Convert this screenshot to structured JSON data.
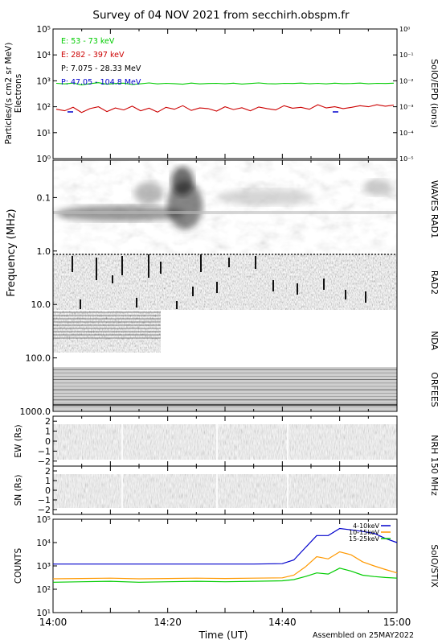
{
  "title": "Survey of 04 NOV 2021 from secchirh.obspm.fr",
  "footer": {
    "xlabel": "Time (UT)",
    "assembled": "Assembled on 25MAY2022"
  },
  "time_ticks": [
    "14:00",
    "14:20",
    "14:40",
    "15:00"
  ],
  "colors": {
    "green": "#00cc00",
    "red": "#cc0000",
    "black": "#000000",
    "blue": "#0000cc",
    "orange": "#ff9900",
    "stix_green": "#00cc00"
  },
  "chart_data": [
    {
      "id": "epd",
      "type": "line",
      "instrument": "SolO/EPD (ions)",
      "ylabel": "Particles/(s cm2 sr MeV)",
      "ylabel2": "Electrons",
      "yscale": "log",
      "ylim": [
        1,
        100000
      ],
      "ylim_right": [
        1e-05,
        1
      ],
      "y_ticks": [
        {
          "v": 1,
          "t": "10⁰"
        },
        {
          "v": 10,
          "t": "10¹"
        },
        {
          "v": 100,
          "t": "10²"
        },
        {
          "v": 1000,
          "t": "10³"
        },
        {
          "v": 10000,
          "t": "10⁴"
        },
        {
          "v": 100000,
          "t": "10⁵"
        }
      ],
      "y_ticks_right": [
        {
          "v": 1e-05,
          "t": "10⁻⁵"
        },
        {
          "v": 0.0001,
          "t": "10⁻⁴"
        },
        {
          "v": 0.001,
          "t": "10⁻³"
        },
        {
          "v": 0.01,
          "t": "10⁻²"
        },
        {
          "v": 0.1,
          "t": "10⁻¹"
        },
        {
          "v": 1,
          "t": "10⁰"
        }
      ],
      "series": [
        {
          "name": "E: 53 - 73 keV",
          "color": "#00cc00",
          "values": [
            800,
            760,
            820,
            700,
            780,
            850,
            740,
            790,
            810,
            720,
            770,
            830,
            760,
            800,
            780,
            740,
            820,
            760,
            790,
            800,
            770,
            810,
            750,
            790,
            830,
            780,
            760,
            800,
            790,
            820,
            770,
            800,
            760,
            810,
            780,
            790,
            820,
            770,
            800,
            790,
            810
          ]
        },
        {
          "name": "E: 282 - 397 keV",
          "color": "#cc0000",
          "values": [
            80,
            70,
            95,
            60,
            85,
            100,
            65,
            90,
            75,
            105,
            70,
            88,
            62,
            95,
            80,
            110,
            72,
            90,
            85,
            68,
            100,
            78,
            92,
            70,
            98,
            85,
            75,
            110,
            88,
            95,
            80,
            120,
            90,
            100,
            85,
            95,
            110,
            100,
            120,
            105,
            115
          ]
        }
      ],
      "legend_extra": [
        {
          "name": "P: 7.075 - 28.33 MeV",
          "color": "#000000"
        },
        {
          "name": "P: 47.05 - 104.8 MeV",
          "color": "#0000cc"
        }
      ]
    },
    {
      "id": "waves",
      "type": "heatmap",
      "ylabel": "Frequency (MHz)",
      "yscale": "log",
      "ylim": [
        0.02,
        1000
      ],
      "y_ticks": [
        {
          "v": 0.1,
          "t": "0.1"
        },
        {
          "v": 1,
          "t": "1.0"
        },
        {
          "v": 10,
          "t": "10.0"
        },
        {
          "v": 100,
          "t": "100.0"
        },
        {
          "v": 1000,
          "t": "1000.0"
        }
      ],
      "bands": [
        {
          "label": "WAVES RAD1",
          "range_mhz": [
            0.02,
            1.0
          ]
        },
        {
          "label": "RAD2",
          "range_mhz": [
            1.0,
            13.8
          ]
        },
        {
          "label": "NDA",
          "range_mhz": [
            13.8,
            80
          ]
        },
        {
          "label": "ORFEES",
          "range_mhz": [
            140,
            1000
          ]
        }
      ]
    },
    {
      "id": "nrh_ew",
      "type": "heatmap",
      "instrument": "NRH 150 MHz",
      "ylabel": "EW (Rs)",
      "ylim": [
        -2.5,
        2.5
      ],
      "y_ticks": [
        {
          "v": 2,
          "t": "2"
        },
        {
          "v": 1,
          "t": "1"
        },
        {
          "v": 0,
          "t": "0"
        },
        {
          "v": -1,
          "t": "−1"
        },
        {
          "v": -2,
          "t": "−2"
        }
      ]
    },
    {
      "id": "nrh_sn",
      "type": "heatmap",
      "ylabel": "SN (Rs)",
      "ylim": [
        -2.5,
        2.5
      ],
      "y_ticks": [
        {
          "v": 2,
          "t": "2"
        },
        {
          "v": 1,
          "t": "1"
        },
        {
          "v": 0,
          "t": "0"
        },
        {
          "v": -1,
          "t": "−1"
        },
        {
          "v": -2,
          "t": "−2"
        }
      ]
    },
    {
      "id": "stix",
      "type": "line",
      "instrument": "SolO/STIX",
      "ylabel": "COUNTS",
      "yscale": "log",
      "ylim": [
        10,
        100000
      ],
      "y_ticks": [
        {
          "v": 10,
          "t": "10¹"
        },
        {
          "v": 100,
          "t": "10²"
        },
        {
          "v": 1000,
          "t": "10³"
        },
        {
          "v": 10000,
          "t": "10⁴"
        },
        {
          "v": 100000,
          "t": "10⁵"
        }
      ],
      "x_minutes": [
        0,
        5,
        10,
        15,
        20,
        25,
        30,
        35,
        40,
        42,
        44,
        46,
        48,
        50,
        52,
        54,
        56,
        58,
        60
      ],
      "series": [
        {
          "name": "4-10keV",
          "color": "#0000cc",
          "values": [
            1200,
            1200,
            1200,
            1200,
            1200,
            1200,
            1200,
            1200,
            1250,
            1800,
            6000,
            20000,
            20000,
            40000,
            35000,
            30000,
            25000,
            15000,
            10000
          ]
        },
        {
          "name": "10-15keV",
          "color": "#ff9900",
          "values": [
            280,
            290,
            300,
            280,
            290,
            300,
            290,
            300,
            310,
            400,
            900,
            2500,
            2000,
            4000,
            3000,
            1500,
            1000,
            700,
            500
          ]
        },
        {
          "name": "15-25keV",
          "color": "#00cc00",
          "values": [
            200,
            210,
            220,
            200,
            210,
            220,
            210,
            220,
            230,
            260,
            350,
            500,
            450,
            800,
            600,
            400,
            350,
            320,
            300
          ]
        }
      ]
    }
  ]
}
